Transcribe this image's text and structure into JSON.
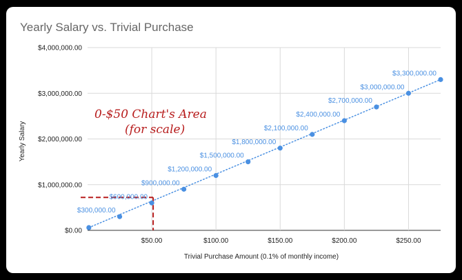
{
  "chart_data": {
    "type": "scatter",
    "title": "Yearly Salary vs. Trivial Purchase",
    "xlabel": "Trivial Purchase Amount (0.1% of monthly income)",
    "ylabel": "Yearly Salary",
    "xlim": [
      0,
      275
    ],
    "ylim": [
      0,
      4000000
    ],
    "grid": true,
    "trendline": {
      "style": "dotted",
      "color": "#4a90e2"
    },
    "colors": {
      "points": "#4a90e2",
      "annotation": "#b71c1c",
      "grid": "#d9d9d9"
    },
    "x_ticks": [
      {
        "value": 50,
        "label": "$50.00"
      },
      {
        "value": 100,
        "label": "$100.00"
      },
      {
        "value": 150,
        "label": "$150.00"
      },
      {
        "value": 200,
        "label": "$200.00"
      },
      {
        "value": 250,
        "label": "$250.00"
      }
    ],
    "y_ticks": [
      {
        "value": 0,
        "label": "$0.00"
      },
      {
        "value": 1000000,
        "label": "$1,000,000.00"
      },
      {
        "value": 2000000,
        "label": "$2,000,000.00"
      },
      {
        "value": 3000000,
        "label": "$3,000,000.00"
      },
      {
        "value": 4000000,
        "label": "$4,000,000.00"
      }
    ],
    "points": [
      {
        "x": 1,
        "y": 60000,
        "label": ""
      },
      {
        "x": 25,
        "y": 300000,
        "label": "$300,000.00"
      },
      {
        "x": 50,
        "y": 600000,
        "label": "$600,000.00"
      },
      {
        "x": 75,
        "y": 900000,
        "label": "$900,000.00"
      },
      {
        "x": 100,
        "y": 1200000,
        "label": "$1,200,000.00"
      },
      {
        "x": 125,
        "y": 1500000,
        "label": "$1,500,000.00"
      },
      {
        "x": 150,
        "y": 1800000,
        "label": "$1,800,000.00"
      },
      {
        "x": 175,
        "y": 2100000,
        "label": "$2,100,000.00"
      },
      {
        "x": 200,
        "y": 2400000,
        "label": "$2,400,000.00"
      },
      {
        "x": 225,
        "y": 2700000,
        "label": "$2,700,000.00"
      },
      {
        "x": 250,
        "y": 3000000,
        "label": "$3,000,000.00"
      },
      {
        "x": 275,
        "y": 3300000,
        "label": "$3,300,000.00"
      }
    ],
    "annotation": {
      "line1": "0-$50 Chart's Area",
      "line2": "(for scale)",
      "region": {
        "x": [
          0,
          50
        ],
        "y": [
          0,
          720000
        ]
      }
    }
  }
}
